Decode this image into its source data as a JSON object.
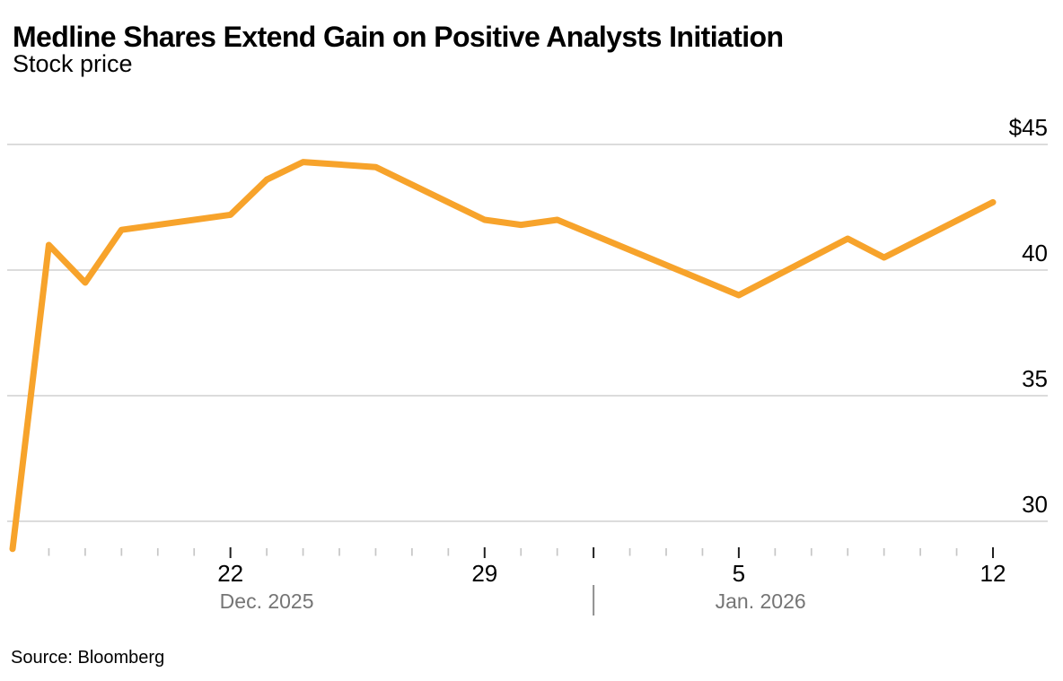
{
  "page": {
    "title": "Medline Shares Extend Gain on Positive Analysts Initiation",
    "subtitle": "Stock price",
    "source": "Source: Bloomberg"
  },
  "chart_data": {
    "type": "line",
    "title": "Medline Shares Extend Gain on Positive Analysts Initiation",
    "subtitle": "Stock price",
    "source": "Source: Bloomberg",
    "xlabel": "",
    "ylabel": "Stock price ($)",
    "ylim": [
      28.6,
      45.6
    ],
    "grid": "horizontal-only",
    "legend": "none",
    "colors": {
      "line": "#F7A32B",
      "gridline": "#d7d7d7",
      "minor_tick": "#c6c6c6",
      "major_tick": "#1f1f1f",
      "date_label": "#000000",
      "month_label": "#757575",
      "y_label": "#000000"
    },
    "y_axis": {
      "side": "right",
      "ticks": [
        {
          "value": 45,
          "label": "$45"
        },
        {
          "value": 40,
          "label": "40"
        },
        {
          "value": 35,
          "label": "35"
        },
        {
          "value": 30,
          "label": "30"
        }
      ]
    },
    "x_axis": {
      "unit": "calendar day",
      "start_date": "2025-12-16",
      "end_date": "2026-01-12",
      "tick_days_from_start": [
        1,
        2,
        3,
        4,
        5,
        6,
        7,
        8,
        9,
        10,
        11,
        12,
        13,
        14,
        15,
        16,
        17,
        18,
        19,
        20,
        21,
        22,
        23,
        24,
        25,
        26,
        27
      ],
      "major_tick_days": [
        6,
        13,
        16,
        20,
        27
      ],
      "labeled_ticks": [
        {
          "day": 6,
          "label": "22"
        },
        {
          "day": 13,
          "label": "29"
        },
        {
          "day": 20,
          "label": "5"
        },
        {
          "day": 27,
          "label": "12"
        }
      ],
      "month_labels": [
        {
          "text": "Dec. 2025",
          "center_day": 7.0
        },
        {
          "text": "Jan. 2026",
          "center_day": 20.6
        }
      ],
      "month_separator_day": 16
    },
    "series": [
      {
        "name": "Medline stock price",
        "points": [
          {
            "date": "2025-12-16",
            "day": 0,
            "value": 28.9
          },
          {
            "date": "2025-12-17",
            "day": 1,
            "value": 41.0
          },
          {
            "date": "2025-12-18",
            "day": 2,
            "value": 39.5
          },
          {
            "date": "2025-12-19",
            "day": 3,
            "value": 41.6
          },
          {
            "date": "2025-12-22",
            "day": 6,
            "value": 42.2
          },
          {
            "date": "2025-12-23",
            "day": 7,
            "value": 43.6
          },
          {
            "date": "2025-12-24",
            "day": 8,
            "value": 44.3
          },
          {
            "date": "2025-12-26",
            "day": 10,
            "value": 44.1
          },
          {
            "date": "2025-12-29",
            "day": 13,
            "value": 42.0
          },
          {
            "date": "2025-12-30",
            "day": 14,
            "value": 41.8
          },
          {
            "date": "2025-12-31",
            "day": 15,
            "value": 42.0
          },
          {
            "date": "2026-01-02",
            "day": 17,
            "value": 40.8
          },
          {
            "date": "2026-01-05",
            "day": 20,
            "value": 39.0
          },
          {
            "date": "2026-01-08",
            "day": 23,
            "value": 41.25
          },
          {
            "date": "2026-01-09",
            "day": 24,
            "value": 40.5
          },
          {
            "date": "2026-01-12",
            "day": 27,
            "value": 42.7
          }
        ]
      }
    ]
  }
}
